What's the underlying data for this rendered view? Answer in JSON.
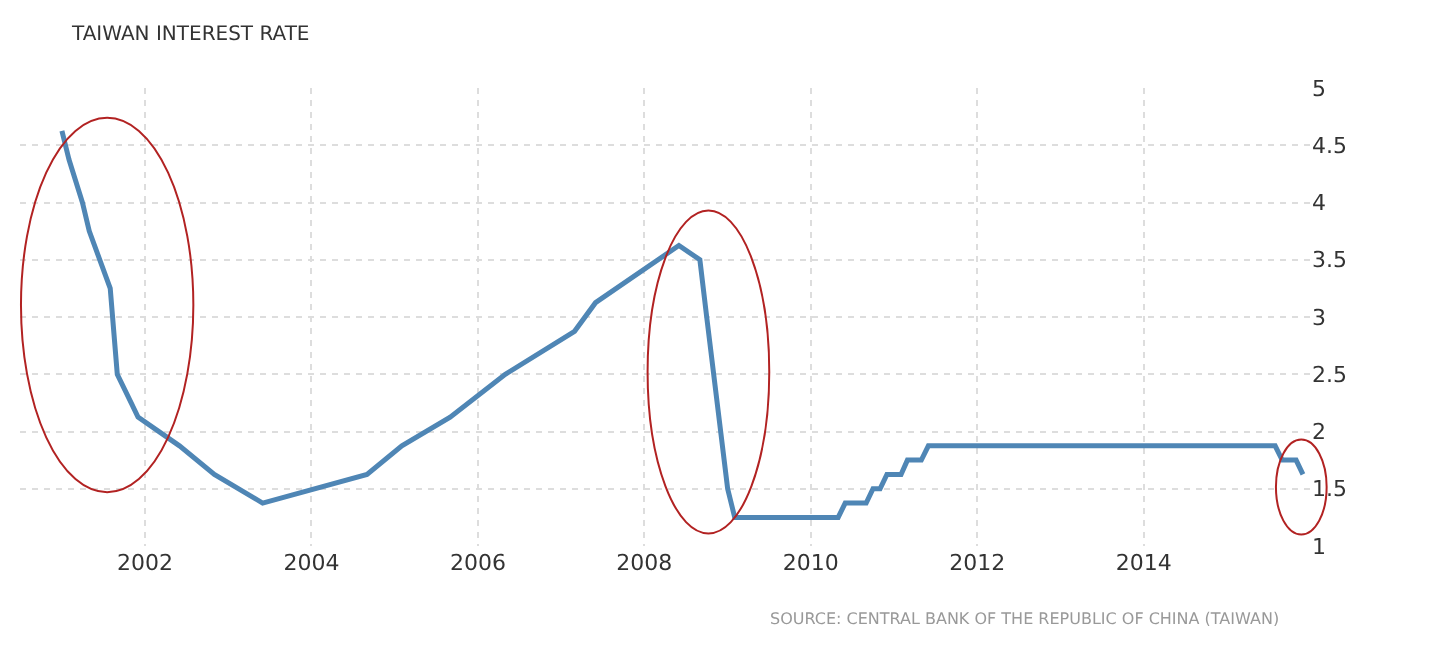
{
  "chart_data": {
    "type": "line",
    "title": "TAIWAN INTEREST RATE",
    "x": [
      "2001-01",
      "2001-02",
      "2001-04",
      "2001-05",
      "2001-08",
      "2001-09",
      "2001-11",
      "2001-12",
      "2002-06",
      "2002-11",
      "2003-06",
      "2004-09",
      "2005-02",
      "2005-09",
      "2006-05",
      "2007-03",
      "2007-06",
      "2008-06",
      "2008-09",
      "2008-10",
      "2009-01",
      "2009-02",
      "2010-05",
      "2010-06",
      "2010-09",
      "2010-10",
      "2010-11",
      "2010-12",
      "2011-02",
      "2011-03",
      "2011-05",
      "2011-06",
      "2015-08",
      "2015-09",
      "2015-11",
      "2015-12"
    ],
    "series": [
      {
        "color": "#4f86b5",
        "values": [
          4.625,
          4.375,
          4,
          3.75,
          3.25,
          2.5,
          2.25,
          2.125,
          1.875,
          1.625,
          1.375,
          1.625,
          1.875,
          2.125,
          2.5,
          2.875,
          3.125,
          3.625,
          3.5,
          3,
          1.5,
          1.25,
          1.25,
          1.375,
          1.375,
          1.5,
          1.5,
          1.625,
          1.625,
          1.75,
          1.75,
          1.875,
          1.875,
          1.75,
          1.75,
          1.625
        ]
      }
    ],
    "xlim": [
      "2000-07",
      "2016-01"
    ],
    "xticks": [
      {
        "value": "2002-01",
        "label": "2002"
      },
      {
        "value": "2004-01",
        "label": "2004"
      },
      {
        "value": "2006-01",
        "label": "2006"
      },
      {
        "value": "2008-01",
        "label": "2008"
      },
      {
        "value": "2010-01",
        "label": "2010"
      },
      {
        "value": "2012-01",
        "label": "2012"
      },
      {
        "value": "2014-01",
        "label": "2014"
      }
    ],
    "ylim": [
      1,
      5
    ],
    "yticks": [
      1,
      1.5,
      2,
      2.5,
      3,
      3.5,
      4,
      4.5,
      5
    ],
    "grid": true,
    "legend": false,
    "marker": "none",
    "line_style": "solid",
    "annotations": [
      "SOURCE: CENTRAL BANK OF THE REPUBLIC OF CHINA (TAIWAN)"
    ]
  }
}
